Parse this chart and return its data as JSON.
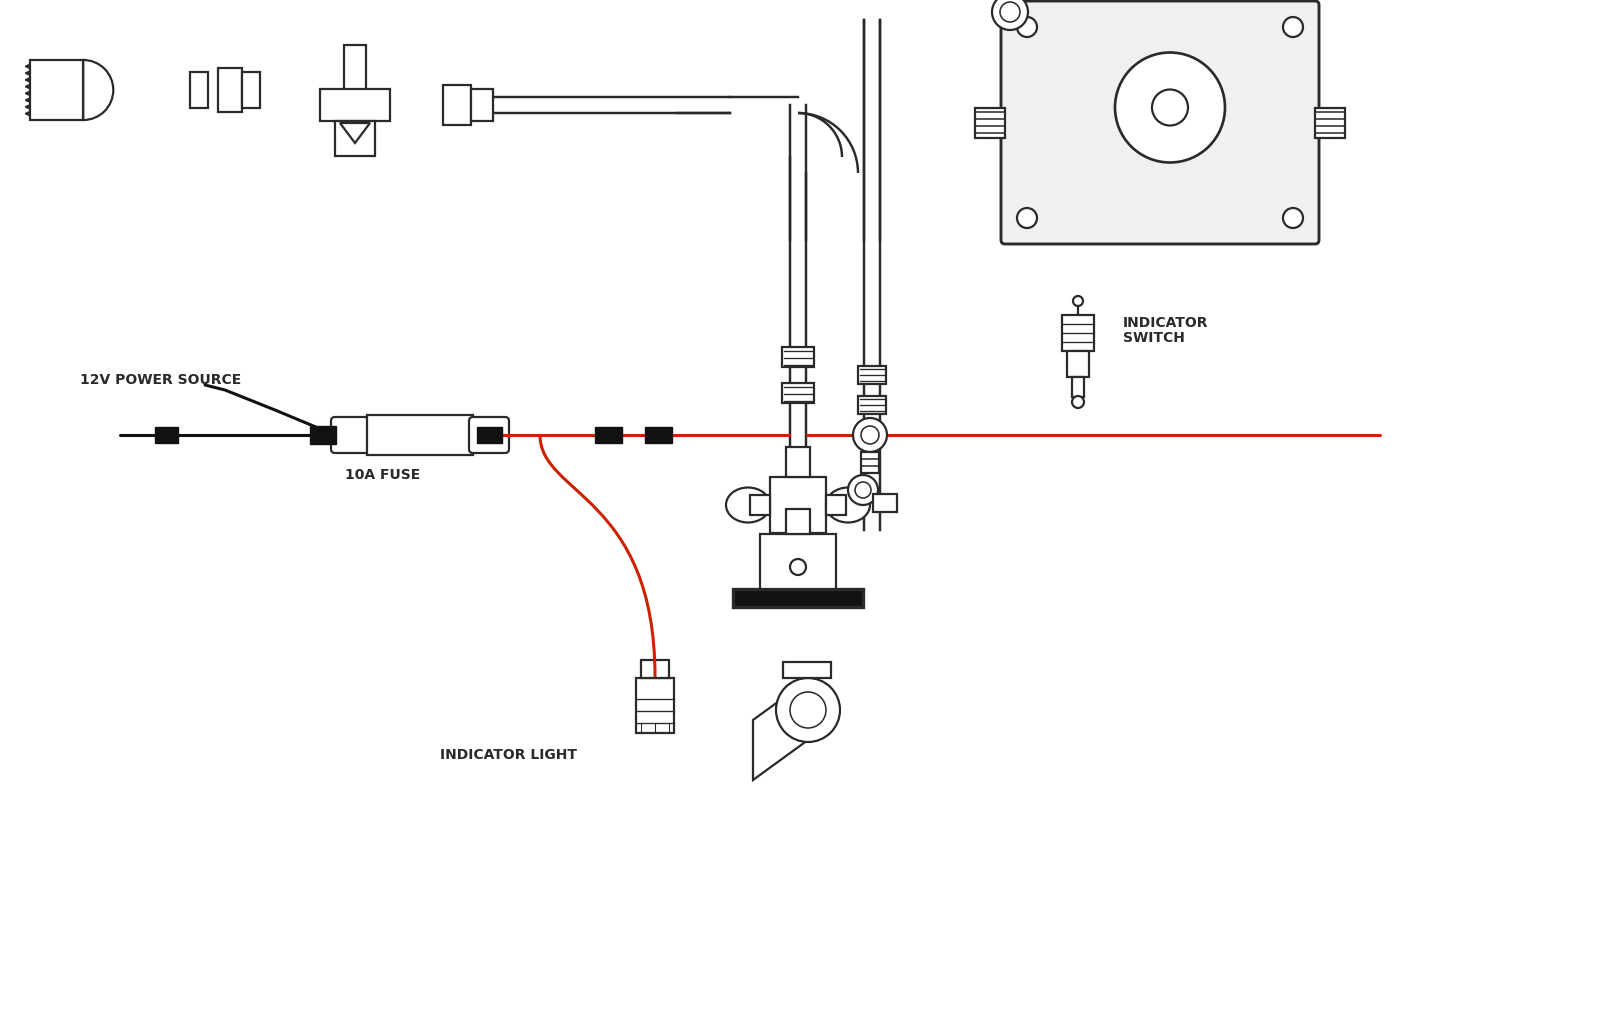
{
  "bg_color": "#ffffff",
  "lc": "#2a2a2a",
  "rc": "#cc2200",
  "bc": "#111111",
  "label_12v": "12V POWER SOURCE",
  "label_fuse": "10A FUSE",
  "label_light": "INDICATOR LIGHT",
  "label_switch_line1": "INDICATOR",
  "label_switch_line2": "SWITCH",
  "lw": 1.6,
  "ww": 2.2
}
